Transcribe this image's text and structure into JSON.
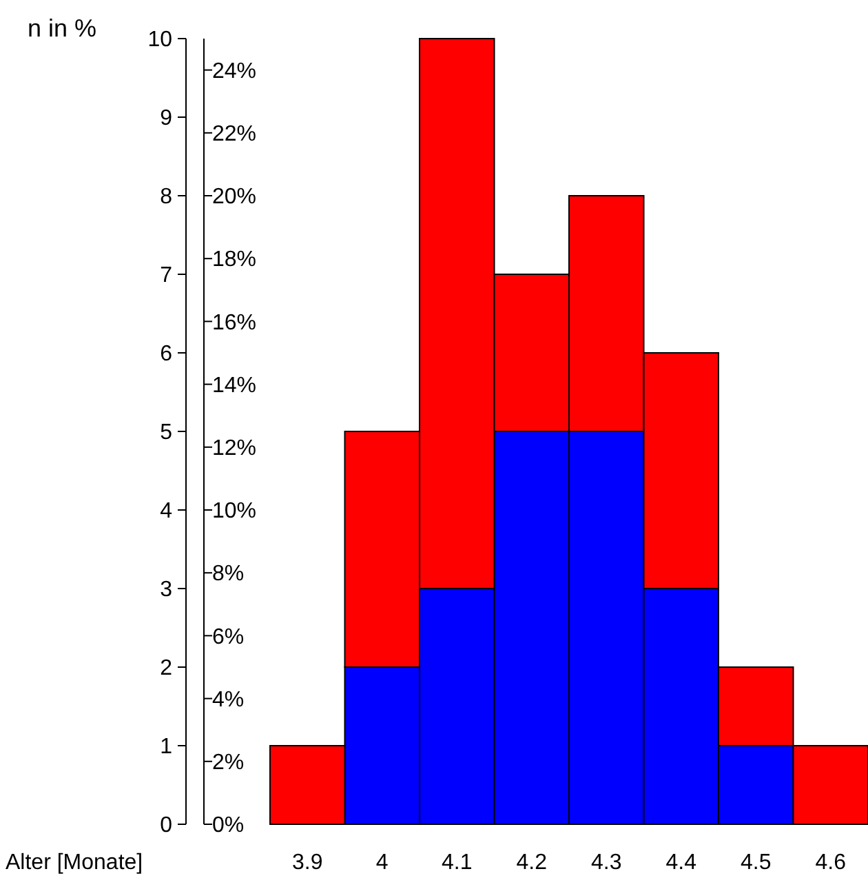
{
  "chart_data": {
    "type": "bar",
    "stacked": true,
    "ylabel": "n in %",
    "xlabel": "Alter [Monate]",
    "categories": [
      "3.9",
      "4",
      "4.1",
      "4.2",
      "4.3",
      "4.4",
      "4.5",
      "4.6"
    ],
    "series": [
      {
        "color": "#0000ff",
        "values": [
          0,
          2,
          3,
          5,
          5,
          3,
          1,
          0
        ]
      },
      {
        "color": "#ff0000",
        "values": [
          1,
          3,
          7,
          2,
          3,
          3,
          1,
          1
        ]
      }
    ],
    "ylim": [
      0,
      10
    ],
    "yticks": [
      0,
      1,
      2,
      3,
      4,
      5,
      6,
      7,
      8,
      9,
      10
    ],
    "y2lim": [
      0,
      25
    ],
    "y2ticks": [
      {
        "value": 0,
        "label": "0%"
      },
      {
        "value": 2,
        "label": "2%"
      },
      {
        "value": 4,
        "label": "4%"
      },
      {
        "value": 6,
        "label": "6%"
      },
      {
        "value": 8,
        "label": "8%"
      },
      {
        "value": 10,
        "label": "10%"
      },
      {
        "value": 12,
        "label": "12%"
      },
      {
        "value": 14,
        "label": "14%"
      },
      {
        "value": 16,
        "label": "16%"
      },
      {
        "value": 18,
        "label": "18%"
      },
      {
        "value": 20,
        "label": "20%"
      },
      {
        "value": 22,
        "label": "22%"
      },
      {
        "value": 24,
        "label": "24%"
      }
    ],
    "grid": false
  }
}
